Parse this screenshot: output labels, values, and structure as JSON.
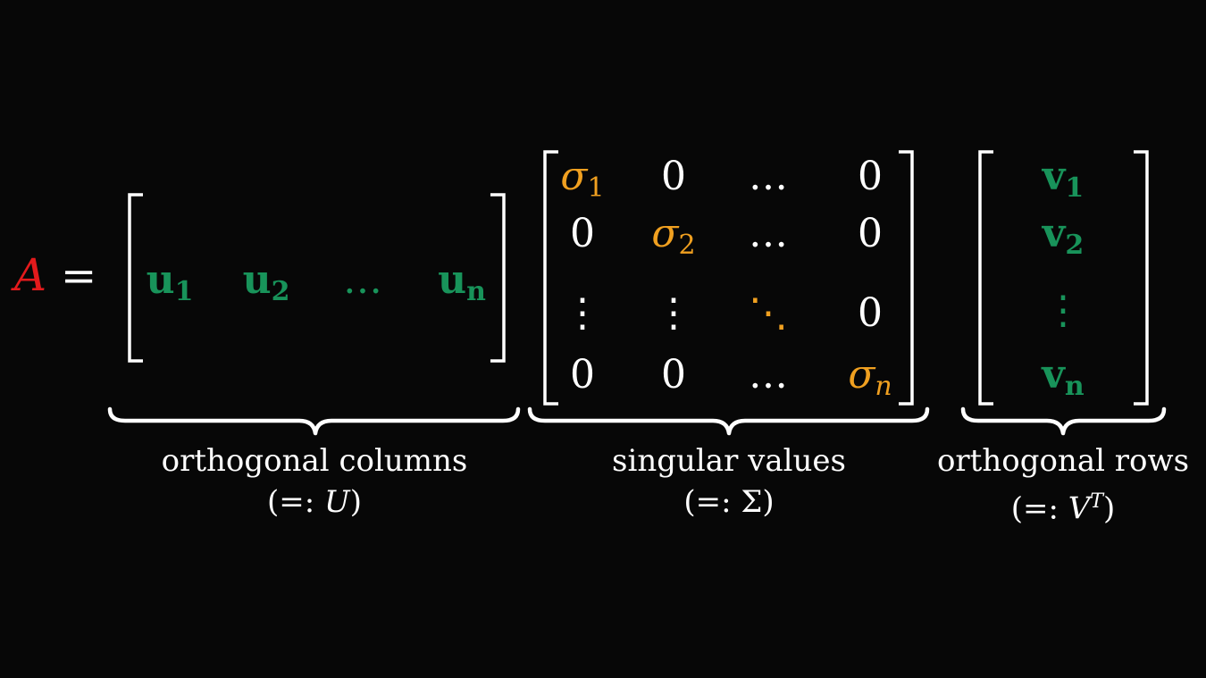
{
  "colors": {
    "A": "#e31a1c",
    "vector": "#18935a",
    "sigma": "#f0a020",
    "text": "#ffffff",
    "background": "#070707"
  },
  "lhs": {
    "symbol": "A",
    "equals": "="
  },
  "U": {
    "entries": [
      {
        "base": "u",
        "sub": "1"
      },
      {
        "base": "u",
        "sub": "2"
      },
      {
        "dots": "…"
      },
      {
        "base": "u",
        "sub": "n"
      }
    ],
    "label": "orthogonal columns",
    "def": {
      "open": "(=:",
      "sym": "U",
      "close": ")"
    }
  },
  "Sigma": {
    "rows": [
      [
        {
          "base": "σ",
          "sub": "1",
          "kind": "sigma"
        },
        {
          "text": "0"
        },
        {
          "text": "…"
        },
        {
          "text": "0"
        }
      ],
      [
        {
          "text": "0"
        },
        {
          "base": "σ",
          "sub": "2",
          "kind": "sigma"
        },
        {
          "text": "…"
        },
        {
          "text": "0"
        }
      ],
      [
        {
          "text": "⋮"
        },
        {
          "text": "⋮"
        },
        {
          "text": "⋱",
          "kind": "sigma"
        },
        {
          "text": "0"
        }
      ],
      [
        {
          "text": "0"
        },
        {
          "text": "0"
        },
        {
          "text": "…"
        },
        {
          "base": "σ",
          "sub": "n",
          "kind": "sigma"
        }
      ]
    ],
    "label": "singular values",
    "def": {
      "open": "(=:",
      "sym": "Σ",
      "close": ")"
    }
  },
  "VT": {
    "entries": [
      {
        "base": "v",
        "sub": "1"
      },
      {
        "base": "v",
        "sub": "2"
      },
      {
        "dots": "⋮"
      },
      {
        "base": "v",
        "sub": "n"
      }
    ],
    "label": "orthogonal rows",
    "def": {
      "open": "(=:",
      "sym": "V",
      "sup": "T",
      "close": ")"
    }
  }
}
